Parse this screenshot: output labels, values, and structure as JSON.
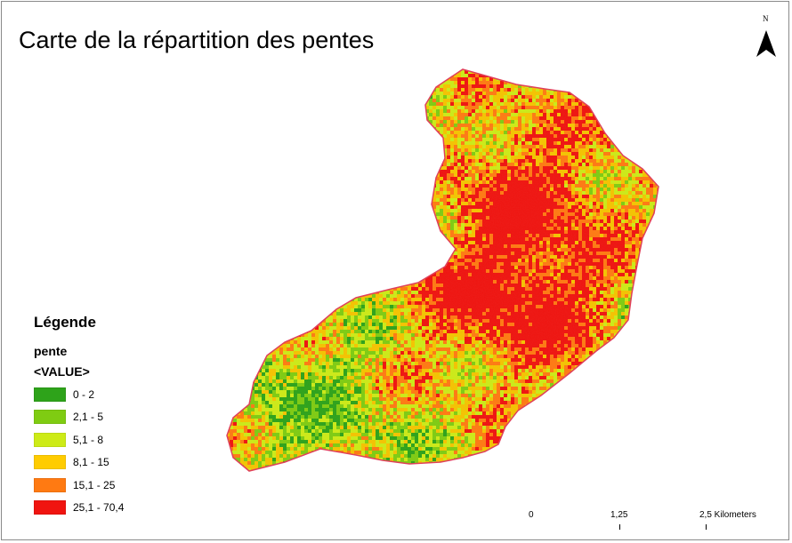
{
  "map": {
    "title": "Carte de la répartition des pentes",
    "north_arrow_letter": "N",
    "boundary_color": "#e0405a"
  },
  "legend": {
    "title": "Légende",
    "layer": "pente",
    "field": "<VALUE>",
    "classes": [
      {
        "label": "0 - 2",
        "color": "#2ea31a"
      },
      {
        "label": "2,1 - 5",
        "color": "#7fcc12"
      },
      {
        "label": "5,1 - 8",
        "color": "#cdeb17"
      },
      {
        "label": "8,1 - 15",
        "color": "#ffcc00"
      },
      {
        "label": "15,1 - 25",
        "color": "#ff7a12"
      },
      {
        "label": "25,1 - 70,4",
        "color": "#f01410"
      }
    ]
  },
  "scalebar": {
    "labels": [
      "0",
      "1,25",
      "2,5 Kilometers"
    ]
  }
}
